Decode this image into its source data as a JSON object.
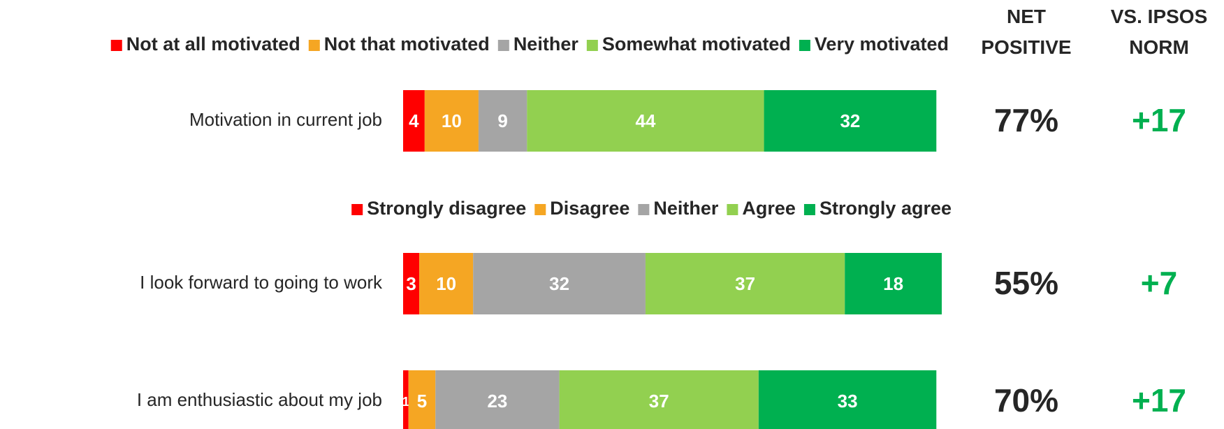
{
  "columns": {
    "net_positive": "NET POSITIVE",
    "vs_norm": "VS. IPSOS NORM"
  },
  "chart_data": [
    {
      "type": "bar",
      "orientation": "horizontal",
      "stacked": true,
      "categories": [
        "Motivation in current job"
      ],
      "series": [
        {
          "name": "Not at all motivated",
          "color": "#ff0000",
          "values": [
            4
          ]
        },
        {
          "name": "Not that motivated",
          "color": "#f5a623",
          "values": [
            10
          ]
        },
        {
          "name": "Neither",
          "color": "#a5a5a5",
          "values": [
            9
          ]
        },
        {
          "name": "Somewhat motivated",
          "color": "#92d050",
          "values": [
            44
          ]
        },
        {
          "name": "Very motivated",
          "color": "#00b050",
          "values": [
            32
          ]
        }
      ],
      "xlim": [
        0,
        100
      ],
      "net_positive": [
        77
      ],
      "net_positive_labels": [
        "77%"
      ],
      "vs_norm": [
        17
      ],
      "vs_norm_labels": [
        "+17"
      ]
    },
    {
      "type": "bar",
      "orientation": "horizontal",
      "stacked": true,
      "categories": [
        "I look forward to going to work",
        "I am enthusiastic about my job"
      ],
      "series": [
        {
          "name": "Strongly disagree",
          "color": "#ff0000",
          "values": [
            3,
            1
          ]
        },
        {
          "name": "Disagree",
          "color": "#f5a623",
          "values": [
            10,
            5
          ]
        },
        {
          "name": "Neither",
          "color": "#a5a5a5",
          "values": [
            32,
            23
          ]
        },
        {
          "name": "Agree",
          "color": "#92d050",
          "values": [
            37,
            37
          ]
        },
        {
          "name": "Strongly agree",
          "color": "#00b050",
          "values": [
            18,
            33
          ]
        }
      ],
      "xlim": [
        0,
        100
      ],
      "net_positive": [
        55,
        70
      ],
      "net_positive_labels": [
        "55%",
        "70%"
      ],
      "vs_norm": [
        7,
        17
      ],
      "vs_norm_labels": [
        "+7",
        "+17"
      ]
    }
  ]
}
